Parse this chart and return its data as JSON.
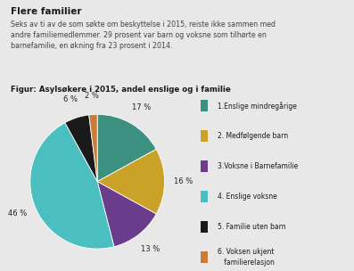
{
  "title": "Flere familier",
  "subtitle": "Seks av ti av de som søkte om beskyttelse i 2015, reiste ikke sammen med\nandre familiemedlemmer. 29 prosent var barn og voksne som tilhørte en\nbarnefamilie, en økning fra 23 prosent i 2014.",
  "figure_title": "Figur: Asylsøkere i 2015, andel enslige og i familie",
  "slices": [
    17,
    16,
    13,
    46,
    6,
    2
  ],
  "colors": [
    "#3b9080",
    "#c9a227",
    "#6b3b8c",
    "#4bbfbf",
    "#1a1a1a",
    "#c97d3a"
  ],
  "labels": [
    "17 %",
    "16 %",
    "13 %",
    "46 %",
    "6 %",
    "2 %"
  ],
  "legend_labels": [
    "1.Enslige mindregårige",
    "2. Medfølgende barn",
    "3.Voksne i Barnefamilie",
    "4. Enslige voksne",
    "5. Familie uten barn",
    "6. Voksen ukjent\n   familierelasjon"
  ],
  "background_color": "#e8e8e8"
}
